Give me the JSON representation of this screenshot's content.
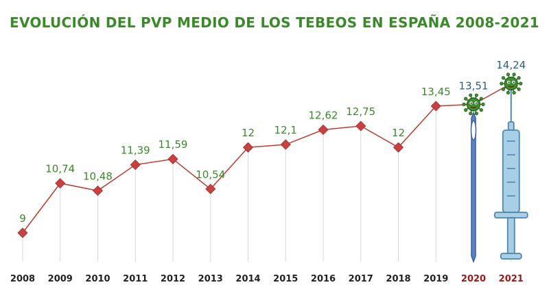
{
  "chart_data": {
    "type": "line",
    "title": "EVOLUCIÓN DEL PVP MEDIO DE LOS TEBEOS EN ESPAÑA 2008-2021",
    "xlabel": "",
    "ylabel": "",
    "ylim": [
      9,
      14.24
    ],
    "grid": "vertical-lines",
    "categories": [
      "2008",
      "2009",
      "2010",
      "2011",
      "2012",
      "2013",
      "2014",
      "2015",
      "2016",
      "2017",
      "2018",
      "2019",
      "2020",
      "2021"
    ],
    "values": [
      9,
      10.74,
      10.48,
      11.39,
      11.59,
      10.54,
      12,
      12.1,
      12.62,
      12.75,
      12,
      13.45,
      13.51,
      14.24
    ],
    "value_labels": [
      "9",
      "10,74",
      "10,48",
      "11,39",
      "11,59",
      "10,54",
      "12",
      "12,1",
      "12,62",
      "12,75",
      "12",
      "13,45",
      "13,51",
      "14,24"
    ],
    "highlighted_categories": [
      "2020",
      "2021"
    ],
    "icons": [
      "virus-icon",
      "virus-icon",
      "syringe-icon",
      "needle-icon"
    ]
  },
  "colors": {
    "title": "#3a8a2a",
    "value_label": "#3a8a2a",
    "value_label_highlight": "#2f5f7a",
    "line": "#c0392b",
    "marker": "#c94040",
    "axis_label": "#222222",
    "axis_label_highlight": "#a01818",
    "gridline": "#d8d8d8",
    "virus": "#3e8e2e",
    "syringe_fill": "#a9cfe6",
    "syringe_stroke": "#4d86ad",
    "needle": "#3a5f9a"
  }
}
